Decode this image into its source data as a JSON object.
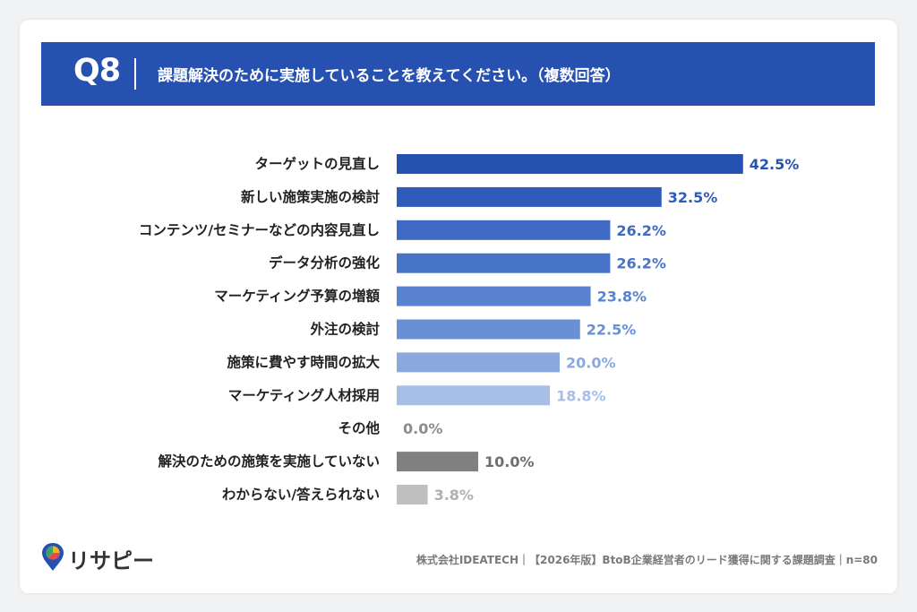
{
  "header": {
    "question_number": "Q8",
    "question_text": "課題解決のために実施していることを教えてください。（複数回答）"
  },
  "chart_data": {
    "type": "bar",
    "orientation": "horizontal",
    "categories": [
      "ターゲットの見直し",
      "新しい施策実施の検討",
      "コンテンツ/セミナーなどの内容見直し",
      "データ分析の強化",
      "マーケティング予算の増額",
      "外注の検討",
      "施策に費やす時間の拡大",
      "マーケティング人材採用",
      "その他",
      "解決のための施策を実施していない",
      "わからない/答えられない"
    ],
    "values": [
      42.5,
      32.5,
      26.2,
      26.2,
      23.8,
      22.5,
      20.0,
      18.8,
      0.0,
      10.0,
      3.8
    ],
    "value_labels": [
      "42.5%",
      "32.5%",
      "26.2%",
      "26.2%",
      "23.8%",
      "22.5%",
      "20.0%",
      "18.8%",
      "0.0%",
      "10.0%",
      "3.8%"
    ],
    "bar_colors": [
      "#2651b1",
      "#2f5bbb",
      "#3e6ac3",
      "#4874c8",
      "#5a83cf",
      "#6990d4",
      "#8aa9dd",
      "#a7bfe6",
      "#bdbdbd",
      "#808080",
      "#bfbfbf"
    ],
    "label_colors": [
      "#2651b1",
      "#2f5bbb",
      "#3e6ac3",
      "#4874c8",
      "#5a83cf",
      "#6990d4",
      "#8aa9dd",
      "#a7bfe6",
      "#8c8c8c",
      "#6e6e6e",
      "#b0b0b0"
    ],
    "xlim": [
      0,
      50
    ],
    "grid": false,
    "legend": "none"
  },
  "footer": {
    "brand": "リサピー",
    "note": "株式会社IDEATECH｜【2026年版】BtoB企業経営者のリード獲得に関する課題調査｜n=80"
  }
}
